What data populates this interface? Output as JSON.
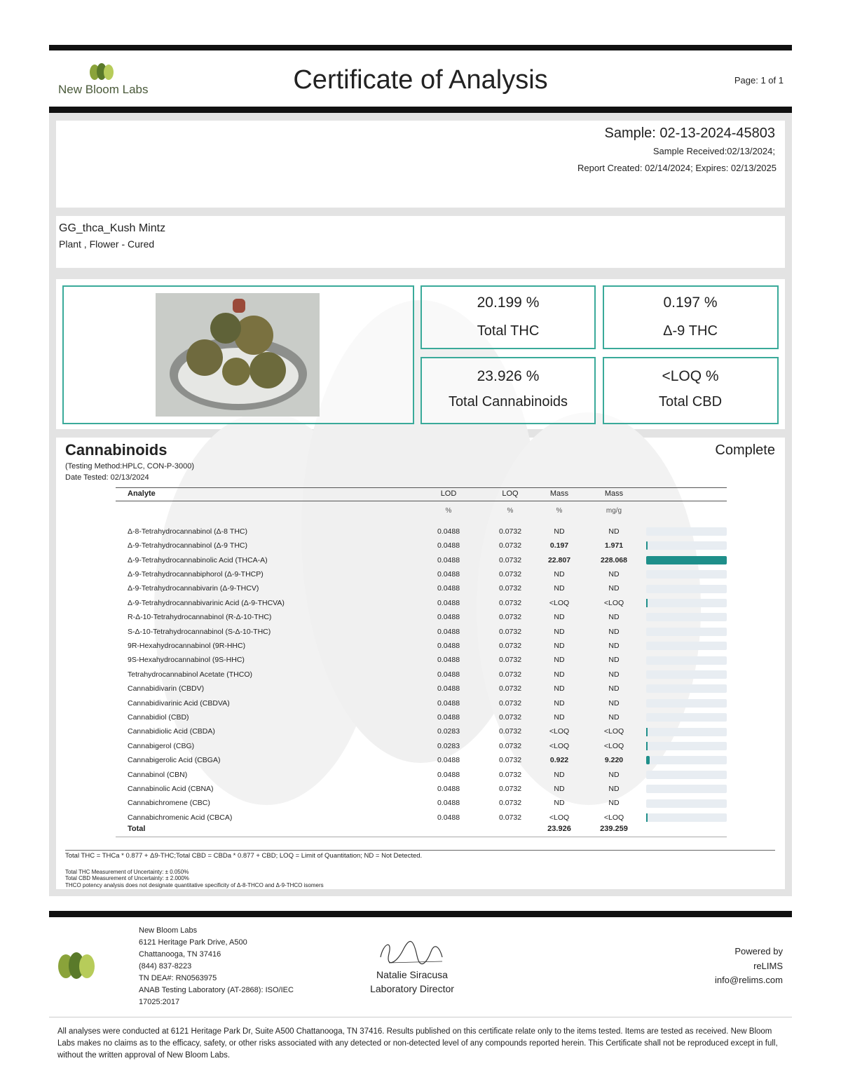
{
  "header": {
    "logo_text": "New Bloom Labs",
    "title": "Certificate of Analysis",
    "page": "Page: 1 of 1"
  },
  "sample": {
    "id": "Sample: 02-13-2024-45803",
    "received": "Sample Received:02/13/2024;",
    "report": "Report Created: 02/14/2024; Expires: 02/13/2025"
  },
  "product": {
    "name": "GG_thca_Kush Mintz",
    "type": "Plant , Flower - Cured"
  },
  "summary": [
    {
      "value": "20.199 %",
      "label": "Total THC"
    },
    {
      "value": "0.197 %",
      "label": "Δ-9 THC"
    },
    {
      "value": "23.926 %",
      "label": "Total Cannabinoids"
    },
    {
      "value": "<LOQ %",
      "label": "Total CBD"
    }
  ],
  "cannabinoids": {
    "title": "Cannabinoids",
    "status": "Complete",
    "method": "(Testing Method:HPLC, CON-P-3000)",
    "date_tested": "Date Tested: 02/13/2024",
    "columns": [
      "Analyte",
      "LOD",
      "LOQ",
      "Mass",
      "Mass"
    ],
    "units": [
      "%",
      "%",
      "%",
      "mg/g"
    ],
    "rows": [
      [
        "Δ-8-Tetrahydrocannabinol (Δ-8 THC)",
        "0.0488",
        "0.0732",
        "ND",
        "ND"
      ],
      [
        "Δ-9-Tetrahydrocannabinol (Δ-9 THC)",
        "0.0488",
        "0.0732",
        "0.197",
        "1.971"
      ],
      [
        "Δ-9-Tetrahydrocannabinolic Acid (THCA-A)",
        "0.0488",
        "0.0732",
        "22.807",
        "228.068"
      ],
      [
        "Δ-9-Tetrahydrocannabiphorol (Δ-9-THCP)",
        "0.0488",
        "0.0732",
        "ND",
        "ND"
      ],
      [
        "Δ-9-Tetrahydrocannabivarin (Δ-9-THCV)",
        "0.0488",
        "0.0732",
        "ND",
        "ND"
      ],
      [
        "Δ-9-Tetrahydrocannabivarinic Acid (Δ-9-THCVA)",
        "0.0488",
        "0.0732",
        "<LOQ",
        "<LOQ"
      ],
      [
        "R-Δ-10-Tetrahydrocannabinol (R-Δ-10-THC)",
        "0.0488",
        "0.0732",
        "ND",
        "ND"
      ],
      [
        "S-Δ-10-Tetrahydrocannabinol (S-Δ-10-THC)",
        "0.0488",
        "0.0732",
        "ND",
        "ND"
      ],
      [
        "9R-Hexahydrocannabinol (9R-HHC)",
        "0.0488",
        "0.0732",
        "ND",
        "ND"
      ],
      [
        "9S-Hexahydrocannabinol (9S-HHC)",
        "0.0488",
        "0.0732",
        "ND",
        "ND"
      ],
      [
        "Tetrahydrocannabinol Acetate (THCO)",
        "0.0488",
        "0.0732",
        "ND",
        "ND"
      ],
      [
        "Cannabidivarin (CBDV)",
        "0.0488",
        "0.0732",
        "ND",
        "ND"
      ],
      [
        "Cannabidivarinic Acid (CBDVA)",
        "0.0488",
        "0.0732",
        "ND",
        "ND"
      ],
      [
        "Cannabidiol (CBD)",
        "0.0488",
        "0.0732",
        "ND",
        "ND"
      ],
      [
        "Cannabidiolic Acid (CBDA)",
        "0.0283",
        "0.0732",
        "<LOQ",
        "<LOQ"
      ],
      [
        "Cannabigerol (CBG)",
        "0.0283",
        "0.0732",
        "<LOQ",
        "<LOQ"
      ],
      [
        "Cannabigerolic Acid (CBGA)",
        "0.0488",
        "0.0732",
        "0.922",
        "9.220"
      ],
      [
        "Cannabinol (CBN)",
        "0.0488",
        "0.0732",
        "ND",
        "ND"
      ],
      [
        "Cannabinolic Acid (CBNA)",
        "0.0488",
        "0.0732",
        "ND",
        "ND"
      ],
      [
        "Cannabichromene (CBC)",
        "0.0488",
        "0.0732",
        "ND",
        "ND"
      ],
      [
        "Cannabichromenic Acid (CBCA)",
        "0.0488",
        "0.0732",
        "<LOQ",
        "<LOQ"
      ]
    ],
    "total": {
      "label": "Total",
      "mass_pct": "23.926",
      "mass_mgg": "239.259"
    },
    "notes": [
      "Total THC = THCa * 0.877 + Δ9-THC;Total CBD = CBDa * 0.877 + CBD; LOQ = Limit of Quantitation; ND = Not Detected.",
      "Total THC Measurement of Uncertainty: ± 0.050%",
      "Total CBD Measurement of Uncertainty: ± 2.000%",
      "THCO potency analysis does not designate quantitative specificity of Δ-8-THCO and Δ-9-THCO isomers"
    ]
  },
  "footer": {
    "lab_lines": [
      "New Bloom Labs",
      "6121 Heritage Park Drive, A500",
      "Chattanooga, TN 37416",
      "(844) 837-8223",
      "TN DEA#: RN0563975",
      "ANAB Testing Laboratory (AT-2868): ISO/IEC",
      "17025:2017"
    ],
    "director_name": "Natalie Siracusa",
    "director_title": "Laboratory Director",
    "powered": [
      "Powered by",
      "reLIMS",
      "info@relims.com"
    ],
    "disclaimer": "All analyses were conducted at 6121 Heritage Park Dr, Suite A500 Chattanooga, TN 37416. Results published on this certificate relate only to the items tested. Items are tested as received. New Bloom Labs makes no claims as to the efficacy, safety, or other risks associated with any detected or non-detected level of any compounds reported herein. This Certificate shall not be reproduced except in full, without the written approval of New Bloom Labs."
  }
}
